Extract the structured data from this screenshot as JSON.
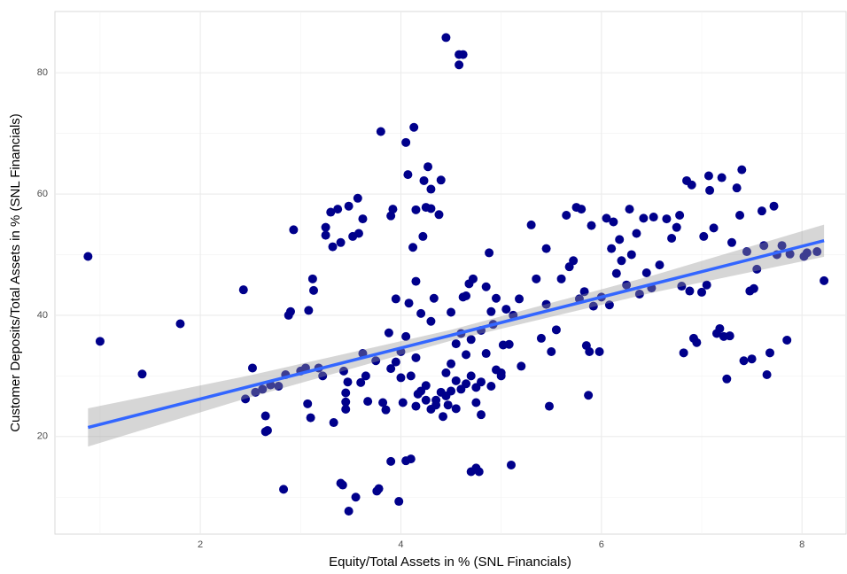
{
  "chart_data": {
    "type": "scatter",
    "x_label": "Equity/Total Assets in % (SNL Financials)",
    "y_label": "Customer Deposits/Total Assets in % (SNL Financials)",
    "color": "#00008b",
    "xlim": [
      0.55,
      8.44
    ],
    "ylim": [
      3.9,
      90.1
    ],
    "xticks": [
      2,
      4,
      6,
      8
    ],
    "yticks": [
      20,
      40,
      60,
      80
    ],
    "minor_xgrid": [
      1,
      3,
      5,
      7
    ],
    "minor_ygrid": [
      10,
      30,
      50,
      70
    ],
    "grid": true,
    "x": [
      0.88,
      1.0,
      1.42,
      1.8,
      2.43,
      2.52,
      2.45,
      2.55,
      2.62,
      2.65,
      2.65,
      2.67,
      2.7,
      2.78,
      2.83,
      2.85,
      2.88,
      2.9,
      2.93,
      3.0,
      3.05,
      3.07,
      3.08,
      3.12,
      3.13,
      3.1,
      3.18,
      3.22,
      3.25,
      3.25,
      3.3,
      3.32,
      3.33,
      3.37,
      3.4,
      3.4,
      3.42,
      3.43,
      3.45,
      3.45,
      3.45,
      3.47,
      3.48,
      3.48,
      3.52,
      3.55,
      3.57,
      3.58,
      3.6,
      3.62,
      3.62,
      3.65,
      3.67,
      3.75,
      3.76,
      3.78,
      3.8,
      3.82,
      3.85,
      3.88,
      3.9,
      3.9,
      3.92,
      3.95,
      3.95,
      3.98,
      4.0,
      4.02,
      4.05,
      4.05,
      4.07,
      4.08,
      4.1,
      4.12,
      4.13,
      4.15,
      4.15,
      4.17,
      4.2,
      4.22,
      4.23,
      4.25,
      4.27,
      4.3,
      4.3,
      4.33,
      4.38,
      4.4,
      4.42,
      4.45,
      4.47,
      4.5,
      4.55,
      4.58,
      4.58,
      4.62,
      4.62,
      4.65,
      4.68,
      4.7,
      4.72,
      4.75,
      4.78,
      4.8,
      4.85,
      4.88,
      4.9,
      4.92,
      4.95,
      5.0,
      5.02,
      5.05,
      5.08,
      5.1,
      5.12,
      5.18,
      5.2,
      5.3,
      5.35,
      5.4,
      5.45,
      5.45,
      5.48,
      5.5,
      5.55,
      5.6,
      5.65,
      5.68,
      5.72,
      5.75,
      5.78,
      5.8,
      5.83,
      5.85,
      5.87,
      5.88,
      5.9,
      5.92,
      5.98,
      6.0,
      6.05,
      6.08,
      6.1,
      6.12,
      6.15,
      6.18,
      6.2,
      6.25,
      6.28,
      6.3,
      6.35,
      6.38,
      6.42,
      6.45,
      6.5,
      6.52,
      6.58,
      6.65,
      6.7,
      6.75,
      6.78,
      6.8,
      6.82,
      6.85,
      6.88,
      6.9,
      6.92,
      6.95,
      7.0,
      7.02,
      7.05,
      7.07,
      7.08,
      7.12,
      7.15,
      7.18,
      7.2,
      7.22,
      7.25,
      7.28,
      7.3,
      7.35,
      7.38,
      7.4,
      7.42,
      7.45,
      7.48,
      7.5,
      7.52,
      7.55,
      7.6,
      7.62,
      7.65,
      7.68,
      7.72,
      7.75,
      7.8,
      7.85,
      7.88,
      8.02,
      8.05,
      8.15,
      8.22,
      4.2,
      4.25,
      4.3,
      4.35,
      4.4,
      4.45,
      4.5,
      4.55,
      4.6,
      4.65,
      4.7,
      4.75,
      4.8,
      4.85,
      4.9,
      4.95,
      4.1,
      4.15,
      4.0,
      3.9,
      4.05,
      4.3,
      4.5,
      4.55,
      4.6,
      4.7,
      4.8,
      5.0,
      4.35,
      4.45,
      4.65,
      4.75,
      4.25,
      4.15
    ],
    "values": [
      49.7,
      35.7,
      30.3,
      38.6,
      44.2,
      31.3,
      26.2,
      27.3,
      27.8,
      20.8,
      23.4,
      21.0,
      28.5,
      28.3,
      11.3,
      30.2,
      40.0,
      40.6,
      54.1,
      30.8,
      31.3,
      25.4,
      40.8,
      46.0,
      44.1,
      23.1,
      31.3,
      30.0,
      54.5,
      53.2,
      57.0,
      51.3,
      22.3,
      57.5,
      52.0,
      12.3,
      12.0,
      30.8,
      24.5,
      27.2,
      25.7,
      29.0,
      58.0,
      7.7,
      53.0,
      10.0,
      59.3,
      53.5,
      28.9,
      55.9,
      33.7,
      30.0,
      25.8,
      32.5,
      11.0,
      11.4,
      70.3,
      25.6,
      24.4,
      37.1,
      56.4,
      15.9,
      57.5,
      42.7,
      32.3,
      9.3,
      29.7,
      25.6,
      16.0,
      68.5,
      63.2,
      42.0,
      16.3,
      51.2,
      71.0,
      45.6,
      57.4,
      27.0,
      40.3,
      53.0,
      62.2,
      57.8,
      64.5,
      60.8,
      57.6,
      42.8,
      56.6,
      62.3,
      23.3,
      85.8,
      25.2,
      27.5,
      24.6,
      81.3,
      83.0,
      83.0,
      43.0,
      43.2,
      45.2,
      14.2,
      46.0,
      14.8,
      14.2,
      23.6,
      44.7,
      50.3,
      40.6,
      38.5,
      42.8,
      30.0,
      35.1,
      41.0,
      35.2,
      15.3,
      40.0,
      42.7,
      31.6,
      54.9,
      46.0,
      36.2,
      51.0,
      41.8,
      25.0,
      34.0,
      37.6,
      46.0,
      56.5,
      48.0,
      49.0,
      57.8,
      42.7,
      57.5,
      43.9,
      35.0,
      26.8,
      34.0,
      54.8,
      41.5,
      34.0,
      43.0,
      56.0,
      41.7,
      51.0,
      55.4,
      46.9,
      52.5,
      49.0,
      45.0,
      57.5,
      50.0,
      53.5,
      43.5,
      56.0,
      47.0,
      44.5,
      56.2,
      48.3,
      55.9,
      52.7,
      54.5,
      56.5,
      44.8,
      33.8,
      62.2,
      44.0,
      61.5,
      36.2,
      35.5,
      43.8,
      53.0,
      45.0,
      63.0,
      60.6,
      54.4,
      37.0,
      37.8,
      62.7,
      36.5,
      29.5,
      36.6,
      52.0,
      61.0,
      56.5,
      64.0,
      32.5,
      50.5,
      44.0,
      32.8,
      44.4,
      47.6,
      57.2,
      51.5,
      30.2,
      33.8,
      58.0,
      50.0,
      51.5,
      35.9,
      50.1,
      49.7,
      50.3,
      50.5,
      45.7,
      27.5,
      28.4,
      24.5,
      26.0,
      27.3,
      30.5,
      32.0,
      29.2,
      27.8,
      33.5,
      30.0,
      28.1,
      29.0,
      33.7,
      28.3,
      31.0,
      30.0,
      33.0,
      34.0,
      31.2,
      36.5,
      39.0,
      40.5,
      35.3,
      37.0,
      36.0,
      37.5,
      30.5,
      25.2,
      26.7,
      28.7,
      25.6,
      26.0,
      25.0
    ],
    "fit": {
      "color": "#3366ff",
      "band_color": "#999999",
      "x": [
        0.88,
        2.5,
        4.5,
        6.5,
        8.22
      ],
      "y": [
        21.5,
        28.3,
        36.7,
        45.1,
        52.3
      ],
      "lower": [
        18.35,
        26.5,
        35.8,
        43.7,
        49.65
      ],
      "upper": [
        24.65,
        30.1,
        37.6,
        46.5,
        54.95
      ]
    }
  }
}
